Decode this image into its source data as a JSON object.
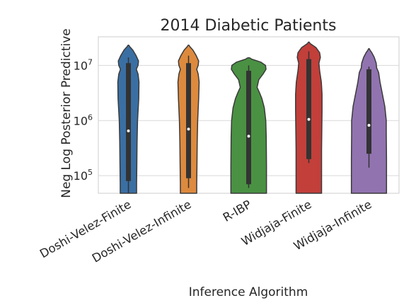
{
  "chart_data": {
    "type": "violin",
    "title": "2014 Diabetic Patients",
    "xlabel": "Inference Algorithm",
    "ylabel": "Neg Log Posterior Predictive",
    "yscale": "log",
    "ylim": [
      48000,
      33000000
    ],
    "yticks": [
      {
        "value": 100000,
        "base": "10",
        "exp": "5"
      },
      {
        "value": 1000000,
        "base": "10",
        "exp": "6"
      },
      {
        "value": 10000000,
        "base": "10",
        "exp": "7"
      }
    ],
    "grid": "horizontal",
    "categories": [
      "Doshi-Velez-Finite",
      "Doshi-Velez-Infinite",
      "R-IBP",
      "Widjaja-Finite",
      "Widjaja-Infinite"
    ],
    "series": [
      {
        "category": "Doshi-Velez-Finite",
        "color": "#3a6fa3",
        "min": 48000,
        "max": 22000000,
        "q1": 80000,
        "median": 650000,
        "q3": 11000000,
        "whisker_low": 48000,
        "whisker_high": 14000000,
        "density": [
          [
            48000,
            0.34
          ],
          [
            70000,
            0.34
          ],
          [
            150000,
            0.35
          ],
          [
            400000,
            0.36
          ],
          [
            1000000,
            0.38
          ],
          [
            2500000,
            0.43
          ],
          [
            5000000,
            0.44
          ],
          [
            7000000,
            0.4
          ],
          [
            8500000,
            0.33
          ],
          [
            10000000,
            0.4
          ],
          [
            12000000,
            0.42
          ],
          [
            15000000,
            0.32
          ],
          [
            19000000,
            0.18
          ],
          [
            22000000,
            0.05
          ]
        ]
      },
      {
        "category": "Doshi-Velez-Infinite",
        "color": "#dd8a3e",
        "min": 48000,
        "max": 22000000,
        "q1": 90000,
        "median": 700000,
        "q3": 11000000,
        "whisker_low": 60000,
        "whisker_high": 15000000,
        "density": [
          [
            48000,
            0.34
          ],
          [
            70000,
            0.34
          ],
          [
            150000,
            0.35
          ],
          [
            400000,
            0.36
          ],
          [
            1000000,
            0.38
          ],
          [
            2500000,
            0.42
          ],
          [
            5000000,
            0.44
          ],
          [
            7000000,
            0.4
          ],
          [
            8500000,
            0.34
          ],
          [
            10000000,
            0.4
          ],
          [
            12000000,
            0.42
          ],
          [
            15000000,
            0.32
          ],
          [
            19000000,
            0.18
          ],
          [
            22000000,
            0.05
          ]
        ]
      },
      {
        "category": "R-IBP",
        "color": "#4a9143",
        "min": 48000,
        "max": 13000000,
        "q1": 70000,
        "median": 520000,
        "q3": 8000000,
        "whisker_low": 60000,
        "whisker_high": 10000000,
        "density": [
          [
            48000,
            0.74
          ],
          [
            150000,
            0.74
          ],
          [
            500000,
            0.73
          ],
          [
            1000000,
            0.71
          ],
          [
            1700000,
            0.65
          ],
          [
            2500000,
            0.55
          ],
          [
            3200000,
            0.45
          ],
          [
            4000000,
            0.35
          ],
          [
            5500000,
            0.42
          ],
          [
            7000000,
            0.6
          ],
          [
            8500000,
            0.72
          ],
          [
            10000000,
            0.7
          ],
          [
            11500000,
            0.5
          ],
          [
            13000000,
            0.12
          ]
        ]
      },
      {
        "category": "Widjaja-Finite",
        "color": "#c23f3a",
        "min": 48000,
        "max": 25000000,
        "q1": 200000,
        "median": 1050000,
        "q3": 13000000,
        "whisker_low": 170000,
        "whisker_high": 18000000,
        "density": [
          [
            48000,
            0.53
          ],
          [
            100000,
            0.53
          ],
          [
            300000,
            0.53
          ],
          [
            700000,
            0.54
          ],
          [
            1500000,
            0.55
          ],
          [
            3000000,
            0.55
          ],
          [
            5000000,
            0.52
          ],
          [
            8000000,
            0.45
          ],
          [
            11000000,
            0.42
          ],
          [
            14000000,
            0.48
          ],
          [
            17000000,
            0.45
          ],
          [
            21000000,
            0.3
          ],
          [
            25000000,
            0.05
          ]
        ]
      },
      {
        "category": "Widjaja-Infinite",
        "color": "#9173b0",
        "min": 48000,
        "max": 19000000,
        "q1": 250000,
        "median": 820000,
        "q3": 8500000,
        "whisker_low": 140000,
        "whisker_high": 9500000,
        "density": [
          [
            48000,
            0.73
          ],
          [
            200000,
            0.73
          ],
          [
            600000,
            0.72
          ],
          [
            1000000,
            0.72
          ],
          [
            1800000,
            0.66
          ],
          [
            3000000,
            0.56
          ],
          [
            5000000,
            0.46
          ],
          [
            7500000,
            0.4
          ],
          [
            9000000,
            0.32
          ],
          [
            11000000,
            0.3
          ],
          [
            14000000,
            0.22
          ],
          [
            17000000,
            0.12
          ],
          [
            19000000,
            0.04
          ]
        ]
      }
    ]
  }
}
